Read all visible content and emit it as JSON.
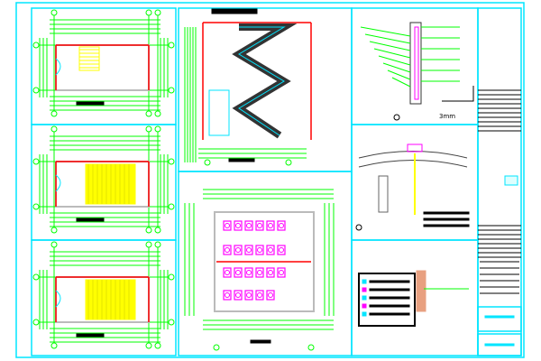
{
  "drawing": {
    "colors": {
      "frame": "#00e5ff",
      "dimension": "#00ff00",
      "wall": "#ff0000",
      "stair": "#ffff00",
      "fixture": "#ff00ff",
      "text": "#000000"
    },
    "detail_note": "3mm"
  }
}
